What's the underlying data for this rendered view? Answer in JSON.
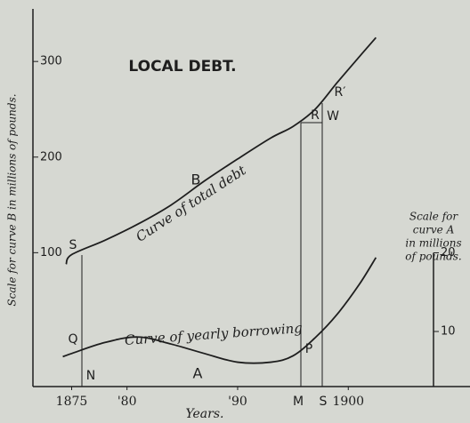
{
  "chart_data": {
    "type": "line",
    "title": "LOCAL DEBT.",
    "x_label": "Years.",
    "y_label": "Scale for curve B in millions of pounds.",
    "y2_label": [
      "Scale for",
      "curve A",
      "in millions",
      "of pounds."
    ],
    "xlim": [
      1871.5,
      1911
    ],
    "xticks": [
      1875,
      {
        "value": 1880,
        "label": "'80"
      },
      {
        "value": 1890,
        "label": "'90"
      },
      1900
    ],
    "ylim": [
      -40,
      355
    ],
    "yticks": [
      100,
      200,
      300
    ],
    "y2lim": [
      3,
      51
    ],
    "y2ticks": [
      10,
      20
    ],
    "series": [
      {
        "name": "B",
        "label": "Curve of total debt",
        "color": "#1e1e1e",
        "x": [
          1874.5,
          1875,
          1878,
          1881,
          1884,
          1887,
          1890,
          1893,
          1895,
          1897,
          1899,
          1901,
          1902.5
        ],
        "values": [
          88,
          98,
          113,
          130,
          150,
          175,
          198,
          220,
          232,
          250,
          278,
          305,
          325
        ]
      },
      {
        "name": "A",
        "label": "Curve of yearly borrowing",
        "color": "#1e1e1e",
        "axis": "y2",
        "x": [
          1874.2,
          1875,
          1878,
          1881,
          1884,
          1887,
          1890,
          1893,
          1895,
          1897,
          1899,
          1901,
          1902.5
        ],
        "values": [
          6.8,
          7.2,
          8.6,
          9.3,
          8.4,
          7.2,
          6.1,
          6.1,
          6.9,
          9.2,
          12.2,
          16,
          19.4
        ]
      }
    ],
    "annotations": [
      "S",
      "Q",
      "N",
      "R",
      "R′",
      "W",
      "P",
      "M",
      "S"
    ]
  }
}
